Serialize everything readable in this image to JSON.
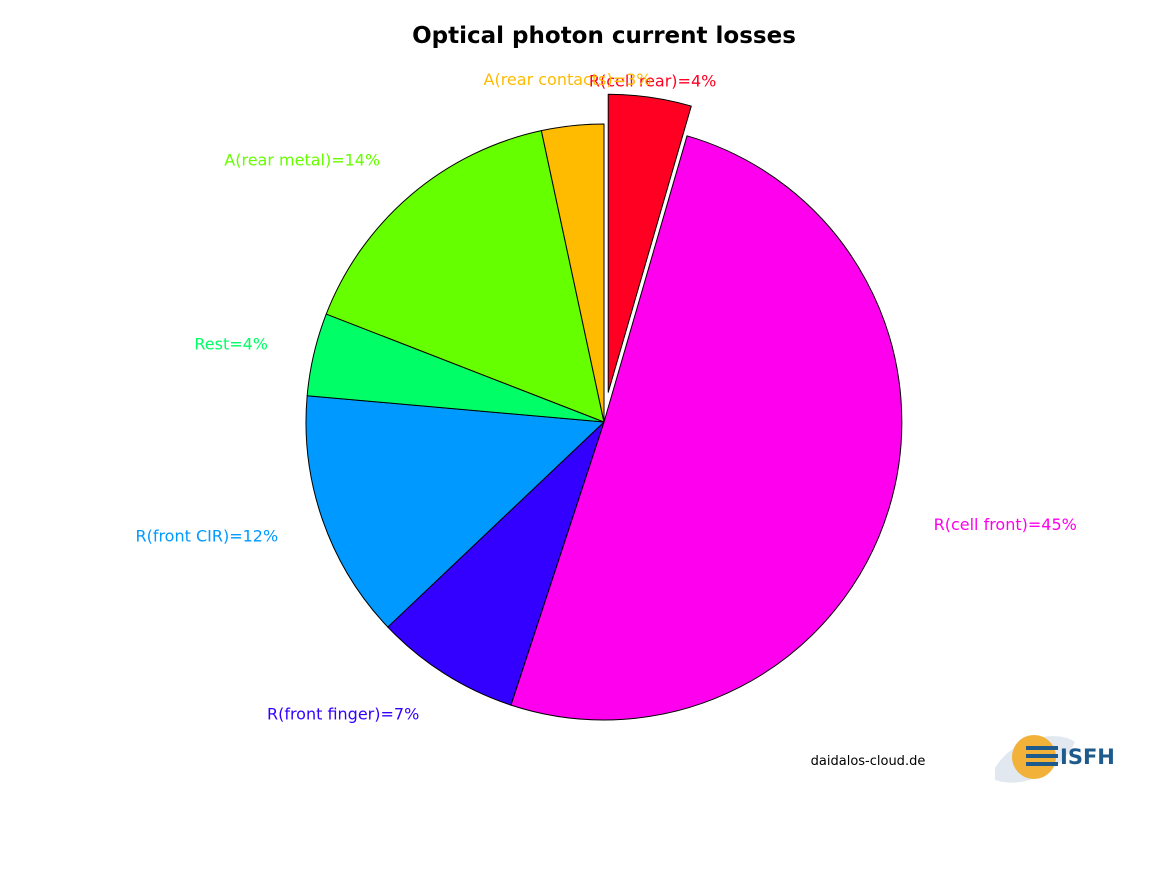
{
  "chart_data": {
    "type": "pie",
    "title": "Optical photon current losses",
    "categories": [
      "R(cell rear)",
      "R(cell front)",
      "R(front finger)",
      "R(front CIR)",
      "Rest",
      "A(rear metal)",
      "A(rear contacts)"
    ],
    "values": [
      4,
      45,
      7,
      12,
      4,
      14,
      3
    ],
    "labels": [
      "R(cell rear)=4%",
      "R(cell front)=45%",
      "R(front finger)=7%",
      "R(front CIR)=12%",
      "Rest=4%",
      "A(rear metal)=14%",
      "A(rear contacts)=3%"
    ],
    "colors": [
      "#ff0022",
      "#ff00ee",
      "#3300ff",
      "#0099ff",
      "#00ff66",
      "#66ff00",
      "#ffbb00"
    ],
    "legend": "none",
    "slice_labels": "outside",
    "direction": "clockwise",
    "start": "top",
    "exploded_slice": "R(cell rear)"
  },
  "watermark": "daidalos-cloud.de",
  "logo": {
    "name": "isfh-logo",
    "text": "ISFH"
  }
}
